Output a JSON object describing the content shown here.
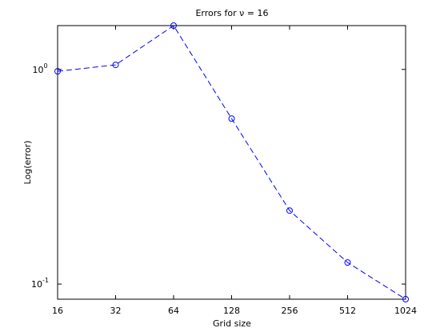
{
  "chart_data": {
    "type": "line",
    "title": "Errors for ν = 16",
    "xlabel": "Grid size",
    "ylabel": "Log(error)",
    "x": [
      16,
      32,
      64,
      128,
      256,
      512,
      1024
    ],
    "series": [
      {
        "color": "#0000ff",
        "values": [
          0.98,
          1.05,
          1.6,
          0.59,
          0.22,
          0.126,
          0.085
        ]
      }
    ],
    "xscale": "log",
    "yscale": "log",
    "xlim": [
      16,
      1024
    ],
    "ylim": [
      0.085,
      1.6
    ],
    "xticks": [
      16,
      32,
      64,
      128,
      256,
      512,
      1024
    ],
    "yticks": [
      {
        "value": 0.1,
        "label": "10",
        "exponent": "-1"
      },
      {
        "value": 1,
        "label": "10",
        "exponent": "0"
      }
    ],
    "grid": false
  }
}
